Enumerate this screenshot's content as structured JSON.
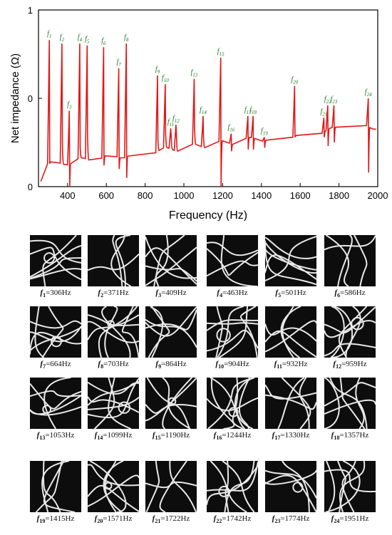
{
  "figure": {
    "ylabel": "Net impedance (Ω)",
    "xlabel": "Frequency (Hz)"
  },
  "chart_data": {
    "type": "line",
    "xlabel": "Frequency (Hz)",
    "ylabel": "Net impedance (Ω)",
    "xlim": [
      250,
      2000
    ],
    "ylim": [
      0,
      1
    ],
    "y_tick_labels": [
      "0",
      "0",
      "1"
    ],
    "x_ticks": [
      400,
      600,
      800,
      1000,
      1200,
      1400,
      1600,
      1800,
      2000
    ],
    "series_color": "#e01818",
    "peak_label_color": "#1f7a1f",
    "peaks": [
      {
        "sub": "1",
        "f": 306,
        "top": 0.83,
        "bottom": 0.13
      },
      {
        "sub": "2",
        "f": 371,
        "top": 0.81,
        "bottom": 0.25
      },
      {
        "sub": "3",
        "f": 409,
        "top": 0.43,
        "bottom": 0.0
      },
      {
        "sub": "4",
        "f": 463,
        "top": 0.81,
        "bottom": 0.22
      },
      {
        "sub": "5",
        "f": 501,
        "top": 0.8,
        "bottom": 0.3
      },
      {
        "sub": "6",
        "f": 586,
        "top": 0.79,
        "bottom": 0.12
      },
      {
        "sub": "7",
        "f": 664,
        "top": 0.67,
        "bottom": 0.1
      },
      {
        "sub": "8",
        "f": 703,
        "top": 0.81,
        "bottom": 0.05
      },
      {
        "sub": "9",
        "f": 864,
        "top": 0.63,
        "bottom": 0.26
      },
      {
        "sub": "10",
        "f": 904,
        "top": 0.58,
        "bottom": 0.3
      },
      {
        "sub": "11",
        "f": 932,
        "top": 0.33,
        "bottom": 0.3
      },
      {
        "sub": "12",
        "f": 959,
        "top": 0.35,
        "bottom": 0.31
      },
      {
        "sub": "13",
        "f": 1053,
        "top": 0.61,
        "bottom": 0.33
      },
      {
        "sub": "14",
        "f": 1099,
        "top": 0.4,
        "bottom": 0.28
      },
      {
        "sub": "15",
        "f": 1190,
        "top": 0.73,
        "bottom": 0.0
      },
      {
        "sub": "16",
        "f": 1244,
        "top": 0.3,
        "bottom": 0.2
      },
      {
        "sub": "17",
        "f": 1330,
        "top": 0.4,
        "bottom": 0.21
      },
      {
        "sub": "18",
        "f": 1357,
        "top": 0.4,
        "bottom": 0.21
      },
      {
        "sub": "19",
        "f": 1415,
        "top": 0.28,
        "bottom": 0.22
      },
      {
        "sub": "20",
        "f": 1571,
        "top": 0.57,
        "bottom": 0.28
      },
      {
        "sub": "21",
        "f": 1722,
        "top": 0.39,
        "bottom": 0.28
      },
      {
        "sub": "22",
        "f": 1742,
        "top": 0.46,
        "bottom": 0.23
      },
      {
        "sub": "23",
        "f": 1774,
        "top": 0.46,
        "bottom": 0.25
      },
      {
        "sub": "24",
        "f": 1951,
        "top": 0.5,
        "bottom": 0.08
      }
    ]
  },
  "panels": [
    {
      "sub": "1",
      "value": "306Hz"
    },
    {
      "sub": "2",
      "value": "371Hz"
    },
    {
      "sub": "3",
      "value": "409Hz"
    },
    {
      "sub": "4",
      "value": "463Hz"
    },
    {
      "sub": "5",
      "value": "501Hz"
    },
    {
      "sub": "6",
      "value": "586Hz"
    },
    {
      "sub": "7",
      "value": "664Hz"
    },
    {
      "sub": "8",
      "value": "703Hz"
    },
    {
      "sub": "9",
      "value": "864Hz"
    },
    {
      "sub": "10",
      "value": "904Hz"
    },
    {
      "sub": "11",
      "value": "932Hz"
    },
    {
      "sub": "12",
      "value": "959Hz"
    },
    {
      "sub": "13",
      "value": "1053Hz"
    },
    {
      "sub": "14",
      "value": "1099Hz"
    },
    {
      "sub": "15",
      "value": "1190Hz"
    },
    {
      "sub": "16",
      "value": "1244Hz"
    },
    {
      "sub": "17",
      "value": "1330Hz"
    },
    {
      "sub": "18",
      "value": "1357Hz"
    },
    {
      "sub": "19",
      "value": "1415Hz"
    },
    {
      "sub": "20",
      "value": "1571Hz"
    },
    {
      "sub": "21",
      "value": "1722Hz"
    },
    {
      "sub": "22",
      "value": "1742Hz"
    },
    {
      "sub": "23",
      "value": "1774Hz"
    },
    {
      "sub": "24",
      "value": "1951Hz"
    }
  ]
}
